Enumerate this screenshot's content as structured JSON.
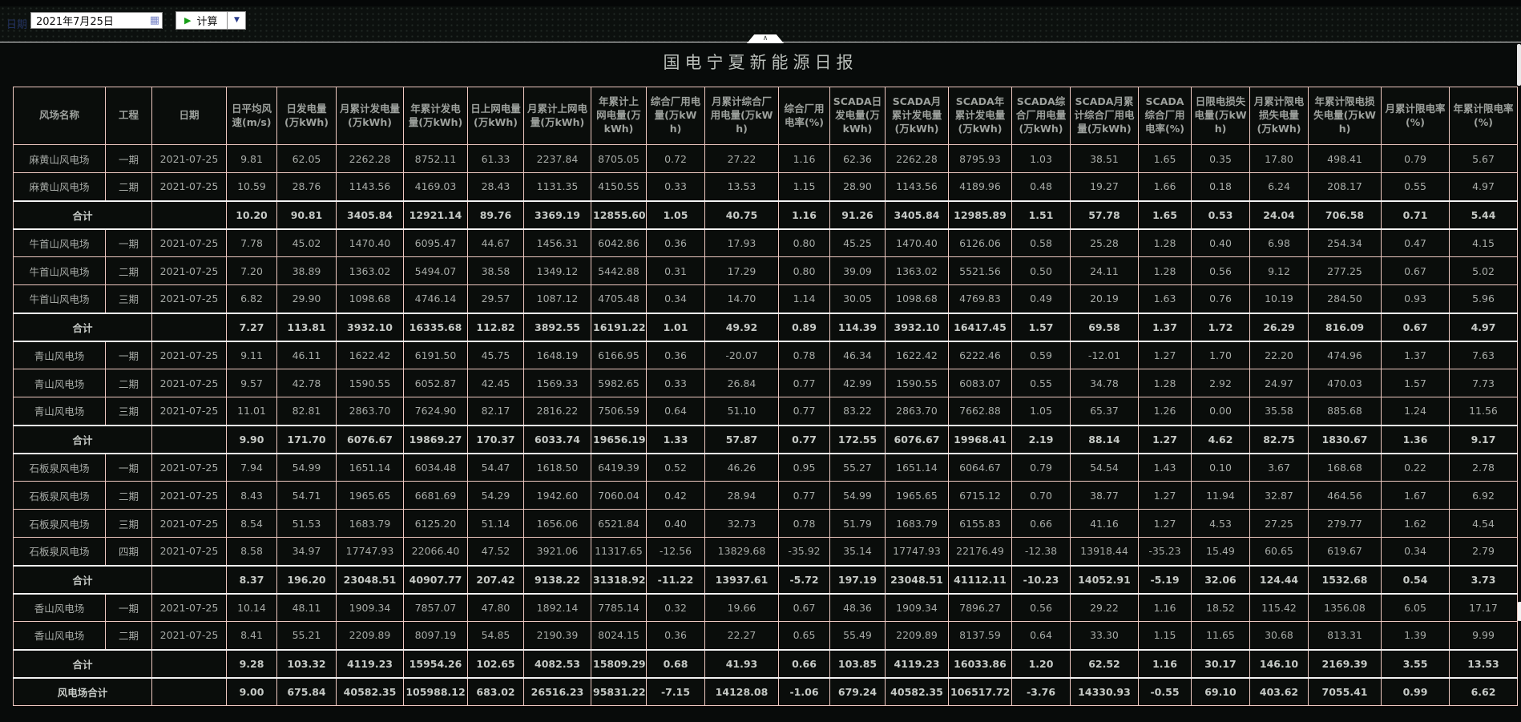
{
  "title": "国电宁夏新能源日报",
  "toolbar": {
    "date_label": "日期",
    "date_value": "2021年7月25日",
    "calc_label": "计算"
  },
  "icons": {
    "calendar": "▦",
    "play": "▶",
    "dropdown": "▼",
    "collapse_up": "∧"
  },
  "colors": {
    "grid_border": "#eec9c1",
    "subtotal_line": "#f2f2f2",
    "cell_text": "#a7aba7",
    "play_green": "#169e16",
    "dropdown_blue": "#2a3c8c"
  },
  "table": {
    "headers": [
      "风场名称",
      "工程",
      "日期",
      "日平均风速(m/s)",
      "日发电量(万kWh)",
      "月累计发电量(万kWh)",
      "年累计发电量(万kWh)",
      "日上网电量(万kWh)",
      "月累计上网电量(万kWh)",
      "年累计上网电量(万kWh)",
      "综合厂用电量(万kWh)",
      "月累计综合厂用电量(万kWh)",
      "综合厂用电率(%)",
      "SCADA日发电量(万kWh)",
      "SCADA月累计发电量(万kWh)",
      "SCADA年累计发电量(万kWh)",
      "SCADA综合厂用电量(万kWh)",
      "SCADA月累计综合厂用电量(万kWh)",
      "SCADA综合厂用电率(%)",
      "日限电损失电量(万kWh)",
      "月累计限电损失电量(万kWh)",
      "年累计限电损失电量(万kWh)",
      "月累计限电率(%)",
      "年累计限电率(%)"
    ],
    "rows": [
      {
        "type": "data",
        "farm": "麻黄山风电场",
        "phase": "一期",
        "date": "2021-07-25",
        "values": [
          "9.81",
          "62.05",
          "2262.28",
          "8752.11",
          "61.33",
          "2237.84",
          "8705.05",
          "0.72",
          "27.22",
          "1.16",
          "62.36",
          "2262.28",
          "8795.93",
          "1.03",
          "38.51",
          "1.65",
          "0.35",
          "17.80",
          "498.41",
          "0.79",
          "5.67"
        ]
      },
      {
        "type": "data",
        "farm": "麻黄山风电场",
        "phase": "二期",
        "date": "2021-07-25",
        "values": [
          "10.59",
          "28.76",
          "1143.56",
          "4169.03",
          "28.43",
          "1131.35",
          "4150.55",
          "0.33",
          "13.53",
          "1.15",
          "28.90",
          "1143.56",
          "4189.96",
          "0.48",
          "19.27",
          "1.66",
          "0.18",
          "6.24",
          "208.17",
          "0.55",
          "4.97"
        ]
      },
      {
        "type": "subtotal",
        "label": "合计",
        "values": [
          "10.20",
          "90.81",
          "3405.84",
          "12921.14",
          "89.76",
          "3369.19",
          "12855.60",
          "1.05",
          "40.75",
          "1.16",
          "91.26",
          "3405.84",
          "12985.89",
          "1.51",
          "57.78",
          "1.65",
          "0.53",
          "24.04",
          "706.58",
          "0.71",
          "5.44"
        ]
      },
      {
        "type": "data",
        "farm": "牛首山风电场",
        "phase": "一期",
        "date": "2021-07-25",
        "values": [
          "7.78",
          "45.02",
          "1470.40",
          "6095.47",
          "44.67",
          "1456.31",
          "6042.86",
          "0.36",
          "17.93",
          "0.80",
          "45.25",
          "1470.40",
          "6126.06",
          "0.58",
          "25.28",
          "1.28",
          "0.40",
          "6.98",
          "254.34",
          "0.47",
          "4.15"
        ]
      },
      {
        "type": "data",
        "farm": "牛首山风电场",
        "phase": "二期",
        "date": "2021-07-25",
        "values": [
          "7.20",
          "38.89",
          "1363.02",
          "5494.07",
          "38.58",
          "1349.12",
          "5442.88",
          "0.31",
          "17.29",
          "0.80",
          "39.09",
          "1363.02",
          "5521.56",
          "0.50",
          "24.11",
          "1.28",
          "0.56",
          "9.12",
          "277.25",
          "0.67",
          "5.02"
        ]
      },
      {
        "type": "data",
        "farm": "牛首山风电场",
        "phase": "三期",
        "date": "2021-07-25",
        "values": [
          "6.82",
          "29.90",
          "1098.68",
          "4746.14",
          "29.57",
          "1087.12",
          "4705.48",
          "0.34",
          "14.70",
          "1.14",
          "30.05",
          "1098.68",
          "4769.83",
          "0.49",
          "20.19",
          "1.63",
          "0.76",
          "10.19",
          "284.50",
          "0.93",
          "5.96"
        ]
      },
      {
        "type": "subtotal",
        "label": "合计",
        "values": [
          "7.27",
          "113.81",
          "3932.10",
          "16335.68",
          "112.82",
          "3892.55",
          "16191.22",
          "1.01",
          "49.92",
          "0.89",
          "114.39",
          "3932.10",
          "16417.45",
          "1.57",
          "69.58",
          "1.37",
          "1.72",
          "26.29",
          "816.09",
          "0.67",
          "4.97"
        ]
      },
      {
        "type": "data",
        "farm": "青山风电场",
        "phase": "一期",
        "date": "2021-07-25",
        "values": [
          "9.11",
          "46.11",
          "1622.42",
          "6191.50",
          "45.75",
          "1648.19",
          "6166.95",
          "0.36",
          "-20.07",
          "0.78",
          "46.34",
          "1622.42",
          "6222.46",
          "0.59",
          "-12.01",
          "1.27",
          "1.70",
          "22.20",
          "474.96",
          "1.37",
          "7.63"
        ]
      },
      {
        "type": "data",
        "farm": "青山风电场",
        "phase": "二期",
        "date": "2021-07-25",
        "values": [
          "9.57",
          "42.78",
          "1590.55",
          "6052.87",
          "42.45",
          "1569.33",
          "5982.65",
          "0.33",
          "26.84",
          "0.77",
          "42.99",
          "1590.55",
          "6083.07",
          "0.55",
          "34.78",
          "1.28",
          "2.92",
          "24.97",
          "470.03",
          "1.57",
          "7.73"
        ]
      },
      {
        "type": "data",
        "farm": "青山风电场",
        "phase": "三期",
        "date": "2021-07-25",
        "values": [
          "11.01",
          "82.81",
          "2863.70",
          "7624.90",
          "82.17",
          "2816.22",
          "7506.59",
          "0.64",
          "51.10",
          "0.77",
          "83.22",
          "2863.70",
          "7662.88",
          "1.05",
          "65.37",
          "1.26",
          "0.00",
          "35.58",
          "885.68",
          "1.24",
          "11.56"
        ]
      },
      {
        "type": "subtotal",
        "label": "合计",
        "values": [
          "9.90",
          "171.70",
          "6076.67",
          "19869.27",
          "170.37",
          "6033.74",
          "19656.19",
          "1.33",
          "57.87",
          "0.77",
          "172.55",
          "6076.67",
          "19968.41",
          "2.19",
          "88.14",
          "1.27",
          "4.62",
          "82.75",
          "1830.67",
          "1.36",
          "9.17"
        ]
      },
      {
        "type": "data",
        "farm": "石板泉风电场",
        "phase": "一期",
        "date": "2021-07-25",
        "values": [
          "7.94",
          "54.99",
          "1651.14",
          "6034.48",
          "54.47",
          "1618.50",
          "6419.39",
          "0.52",
          "46.26",
          "0.95",
          "55.27",
          "1651.14",
          "6064.67",
          "0.79",
          "54.54",
          "1.43",
          "0.10",
          "3.67",
          "168.68",
          "0.22",
          "2.78"
        ]
      },
      {
        "type": "data",
        "farm": "石板泉风电场",
        "phase": "二期",
        "date": "2021-07-25",
        "values": [
          "8.43",
          "54.71",
          "1965.65",
          "6681.69",
          "54.29",
          "1942.60",
          "7060.04",
          "0.42",
          "28.94",
          "0.77",
          "54.99",
          "1965.65",
          "6715.12",
          "0.70",
          "38.77",
          "1.27",
          "11.94",
          "32.87",
          "464.56",
          "1.67",
          "6.92"
        ]
      },
      {
        "type": "data",
        "farm": "石板泉风电场",
        "phase": "三期",
        "date": "2021-07-25",
        "values": [
          "8.54",
          "51.53",
          "1683.79",
          "6125.20",
          "51.14",
          "1656.06",
          "6521.84",
          "0.40",
          "32.73",
          "0.78",
          "51.79",
          "1683.79",
          "6155.83",
          "0.66",
          "41.16",
          "1.27",
          "4.53",
          "27.25",
          "279.77",
          "1.62",
          "4.54"
        ]
      },
      {
        "type": "data",
        "farm": "石板泉风电场",
        "phase": "四期",
        "date": "2021-07-25",
        "values": [
          "8.58",
          "34.97",
          "17747.93",
          "22066.40",
          "47.52",
          "3921.06",
          "11317.65",
          "-12.56",
          "13829.68",
          "-35.92",
          "35.14",
          "17747.93",
          "22176.49",
          "-12.38",
          "13918.44",
          "-35.23",
          "15.49",
          "60.65",
          "619.67",
          "0.34",
          "2.79"
        ]
      },
      {
        "type": "subtotal",
        "label": "合计",
        "values": [
          "8.37",
          "196.20",
          "23048.51",
          "40907.77",
          "207.42",
          "9138.22",
          "31318.92",
          "-11.22",
          "13937.61",
          "-5.72",
          "197.19",
          "23048.51",
          "41112.11",
          "-10.23",
          "14052.91",
          "-5.19",
          "32.06",
          "124.44",
          "1532.68",
          "0.54",
          "3.73"
        ]
      },
      {
        "type": "data",
        "farm": "香山风电场",
        "phase": "一期",
        "date": "2021-07-25",
        "values": [
          "10.14",
          "48.11",
          "1909.34",
          "7857.07",
          "47.80",
          "1892.14",
          "7785.14",
          "0.32",
          "19.66",
          "0.67",
          "48.36",
          "1909.34",
          "7896.27",
          "0.56",
          "29.22",
          "1.16",
          "18.52",
          "115.42",
          "1356.08",
          "6.05",
          "17.17"
        ]
      },
      {
        "type": "data",
        "farm": "香山风电场",
        "phase": "二期",
        "date": "2021-07-25",
        "values": [
          "8.41",
          "55.21",
          "2209.89",
          "8097.19",
          "54.85",
          "2190.39",
          "8024.15",
          "0.36",
          "22.27",
          "0.65",
          "55.49",
          "2209.89",
          "8137.59",
          "0.64",
          "33.30",
          "1.15",
          "11.65",
          "30.68",
          "813.31",
          "1.39",
          "9.99"
        ]
      },
      {
        "type": "subtotal",
        "label": "合计",
        "values": [
          "9.28",
          "103.32",
          "4119.23",
          "15954.26",
          "102.65",
          "4082.53",
          "15809.29",
          "0.68",
          "41.93",
          "0.66",
          "103.85",
          "4119.23",
          "16033.86",
          "1.20",
          "62.52",
          "1.16",
          "30.17",
          "146.10",
          "2169.39",
          "3.55",
          "13.53"
        ]
      },
      {
        "type": "grandtotal",
        "label": "风电场合计",
        "values": [
          "9.00",
          "675.84",
          "40582.35",
          "105988.12",
          "683.02",
          "26516.23",
          "95831.22",
          "-7.15",
          "14128.08",
          "-1.06",
          "679.24",
          "40582.35",
          "106517.72",
          "-3.76",
          "14330.93",
          "-0.55",
          "69.10",
          "403.62",
          "7055.41",
          "0.99",
          "6.62"
        ]
      }
    ]
  }
}
